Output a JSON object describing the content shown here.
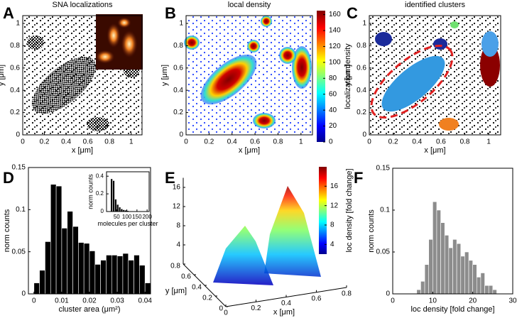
{
  "chart_data": [
    {
      "type": "scatter",
      "panel": "A",
      "title": "SNA localizations",
      "xlabel": "x [μm]",
      "ylabel": "y [μm]",
      "xlim": [
        0,
        1.1
      ],
      "ylim": [
        0,
        1.07
      ],
      "xticks": [
        0,
        0.2,
        0.4,
        0.6,
        0.8,
        1
      ],
      "yticks": [
        0,
        0.2,
        0.4,
        0.6,
        0.8,
        1
      ]
    },
    {
      "type": "scatter",
      "panel": "B",
      "title": "local density",
      "xlabel": "x [μm]",
      "ylabel": "y [μm]",
      "xlim": [
        0,
        1.1
      ],
      "ylim": [
        0,
        1.07
      ],
      "xticks": [
        0,
        0.2,
        0.4,
        0.6,
        0.8,
        1
      ],
      "yticks": [
        0,
        0.2,
        0.4,
        0.6,
        0.8,
        1
      ],
      "clabel": "localization density",
      "clim": [
        0,
        165
      ],
      "cticks": [
        0,
        20,
        40,
        60,
        80,
        100,
        120,
        140,
        160
      ]
    },
    {
      "type": "scatter",
      "panel": "C",
      "title": "identified clusters",
      "xlabel": "x [μm]",
      "ylabel": "y [μm]",
      "xlim": [
        0,
        1.1
      ],
      "ylim": [
        0,
        1.07
      ],
      "xticks": [
        0,
        0.2,
        0.4,
        0.6,
        0.8,
        1
      ],
      "yticks": [
        0,
        0.2,
        0.4,
        0.6,
        0.8,
        1
      ]
    },
    {
      "type": "histogram",
      "panel": "D",
      "xlabel": "cluster area (μm²)",
      "ylabel": "norm counts",
      "color": "#000000",
      "bins": [
        0,
        0.002,
        0.004,
        0.006,
        0.008,
        0.01,
        0.012,
        0.014,
        0.016,
        0.018,
        0.02,
        0.022,
        0.024,
        0.026,
        0.028,
        0.03,
        0.032,
        0.034,
        0.036,
        0.038,
        0.04,
        0.042
      ],
      "values": [
        0.013,
        0.028,
        0.062,
        0.13,
        0.128,
        0.078,
        0.098,
        0.08,
        0.061,
        0.06,
        0.051,
        0.035,
        0.04,
        0.046,
        0.046,
        0.045,
        0.048,
        0.04,
        0.046,
        0.034,
        0.013
      ],
      "xlim": [
        -0.002,
        0.042
      ],
      "ylim": [
        0,
        0.15
      ],
      "xticks": [
        0,
        0.01,
        0.02,
        0.03,
        0.04
      ],
      "yticks": [
        0,
        0.05,
        0.1,
        0.15
      ]
    },
    {
      "type": "histogram",
      "xlabel": "molecules per cluster",
      "ylabel": "norm counts",
      "color": "#000000",
      "bins": [
        20,
        30,
        40,
        50,
        60,
        70,
        80,
        90,
        100,
        110,
        120,
        130
      ],
      "values": [
        0.37,
        0.35,
        0.14,
        0.08,
        0.05,
        0.03,
        0.02,
        0.015,
        0.01,
        0.005,
        0.005
      ],
      "xlim": [
        0,
        210
      ],
      "ylim": [
        0,
        0.45
      ],
      "xticks": [
        50,
        100,
        150,
        200
      ],
      "yticks": [
        0,
        0.2,
        0.4
      ]
    },
    {
      "type": "scatter3d",
      "panel": "E",
      "xlabel": "x [μm]",
      "ylabel": "y [μm]",
      "xlim": [
        0,
        0.8
      ],
      "ylim": [
        0,
        0.8
      ],
      "zlim": [
        0,
        18
      ],
      "xticks": [
        0,
        0.2,
        0.4,
        0.6,
        0.8
      ],
      "yticks": [
        0,
        0.2,
        0.4,
        0.6,
        0.8
      ],
      "zticks": [
        4,
        8,
        12,
        16
      ],
      "clabel": "loc density [fold change]",
      "clim": [
        2,
        20
      ],
      "cticks": [
        4,
        8,
        12,
        16
      ]
    },
    {
      "type": "histogram",
      "panel": "F",
      "xlabel": "loc density [fold change]",
      "ylabel": "norm counts",
      "color": "#8c8c8c",
      "bins": [
        6,
        7,
        8,
        9,
        10,
        11,
        12,
        13,
        14,
        15,
        16,
        17,
        18,
        19,
        20,
        21,
        22,
        23,
        24,
        25,
        26
      ],
      "values": [
        0.005,
        0.015,
        0.035,
        0.065,
        0.11,
        0.1,
        0.085,
        0.07,
        0.055,
        0.065,
        0.06,
        0.045,
        0.05,
        0.04,
        0.035,
        0.02,
        0.025,
        0.01,
        0.01,
        0.005
      ],
      "xlim": [
        0,
        30
      ],
      "ylim": [
        0,
        0.15
      ],
      "xticks": [
        0,
        10,
        20,
        30
      ],
      "yticks": [
        0,
        0.05,
        0.1,
        0.15
      ]
    }
  ]
}
